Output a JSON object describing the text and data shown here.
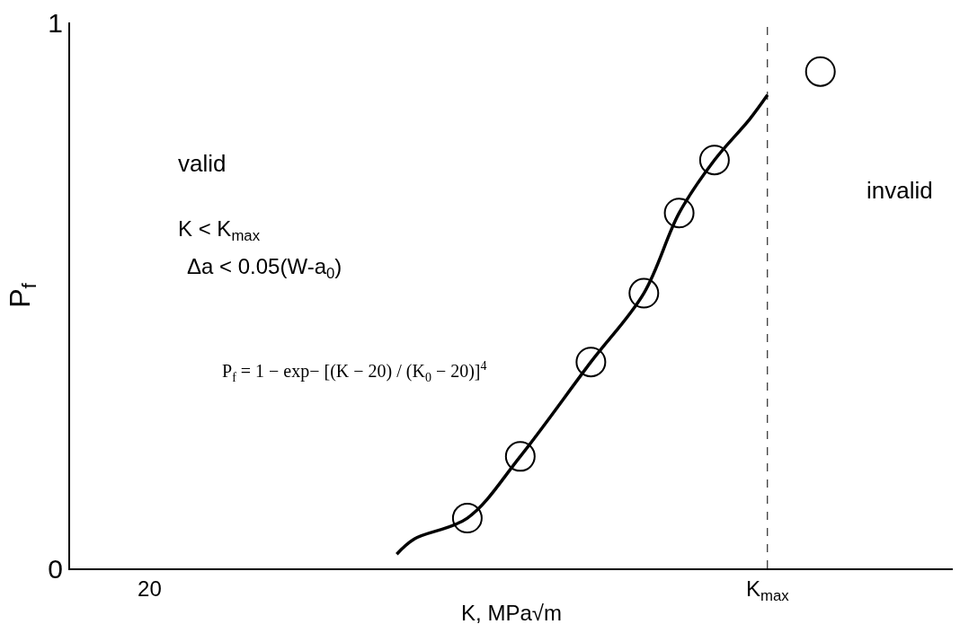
{
  "chart_data": {
    "type": "scatter",
    "xlabel": "K, MPa√m",
    "ylabel": "P$_{f}$",
    "categories": [
      null,
      null,
      null,
      null,
      "20",
      null,
      null,
      null,
      null,
      null,
      null,
      null,
      null,
      null,
      null,
      null,
      null,
      null,
      null,
      null,
      null,
      null,
      null,
      null,
      null,
      null,
      null,
      null,
      null,
      null,
      null,
      null,
      null,
      null,
      null,
      null,
      null,
      null,
      null,
      "K$_{max}$",
      null,
      null,
      null,
      null,
      null,
      null,
      null,
      null,
      null,
      null
    ],
    "ylim": [
      0,
      1
    ],
    "yticks": [
      0,
      1
    ],
    "grid": false,
    "series": [
      {
        "type": "line",
        "color": "#000000",
        "marker": "none",
        "line_style": "solid",
        "values": [
          null,
          null,
          null,
          null,
          null,
          null,
          null,
          null,
          null,
          null,
          null,
          null,
          null,
          null,
          null,
          null,
          null,
          null,
          0.026,
          0.054,
          null,
          null,
          0.092,
          null,
          null,
          0.205,
          null,
          null,
          null,
          0.378,
          null,
          null,
          0.504,
          null,
          0.651,
          null,
          0.748,
          null,
          0.823,
          0.867,
          null,
          null,
          null,
          null,
          null,
          null,
          null,
          null,
          null,
          null
        ]
      },
      {
        "color": "#000000",
        "marker": "circle",
        "values": [
          null,
          null,
          null,
          null,
          null,
          null,
          null,
          null,
          null,
          null,
          null,
          null,
          null,
          null,
          null,
          null,
          null,
          null,
          null,
          null,
          null,
          null,
          0.092,
          null,
          null,
          0.205,
          null,
          null,
          null,
          0.378,
          null,
          null,
          0.504,
          null,
          0.651,
          null,
          0.748,
          null,
          null,
          null,
          null,
          null,
          0.91,
          null,
          null,
          null,
          null,
          null,
          null,
          null
        ]
      }
    ],
    "ref_lines": [
      {
        "axis": "x",
        "value": "K$_{max}$",
        "line_style": "dashed",
        "color": "#000000"
      }
    ],
    "annotations": [
      "valid",
      "invalid",
      "K < K$_{max}$",
      "Δa < 0.05(W-a$_{0}$)",
      "P$_{f}$ = 1 − exp− [(K − 20) / (K$_{0}$ − 20)]$^{4}$"
    ]
  }
}
